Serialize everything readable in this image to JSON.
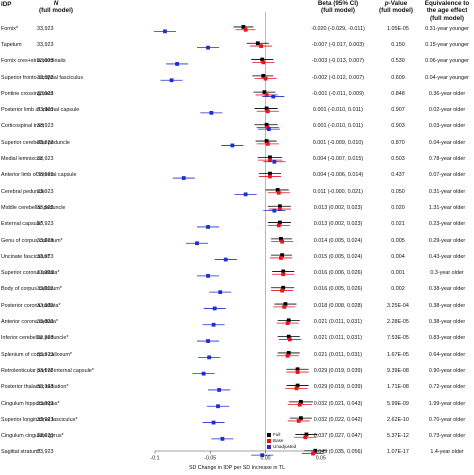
{
  "headers": {
    "idp": "IDP",
    "n_title": "N",
    "n_sub": "(full model)",
    "beta_title": "Beta (95% CI)",
    "beta_sub": "(full model)",
    "p_title_italic": "p",
    "p_title_rest": "-Value",
    "p_sub": "(full model)",
    "eq_title1": "Equivalence to",
    "eq_title2": "the age effect",
    "eq_sub": "(full model)"
  },
  "rows": [
    {
      "label": "Fornix*",
      "n": "33,923",
      "beta": "-0.020 (-0.029, -0.011)",
      "p": "1.05E-05",
      "eq": "0.31-year younger"
    },
    {
      "label": "Tapetum",
      "n": "33,923",
      "beta": "-0.007 (-0.017, 0.003)",
      "p": "0.150",
      "eq": "0.15-year younger"
    },
    {
      "label": "Fornix cres+stria terminalis",
      "n": "33,923",
      "beta": "-0.003 (-0.013, 0.007)",
      "p": "0.530",
      "eq": "0.06-year younger"
    },
    {
      "label": "Superior fronto-occipital fasciculus",
      "n": "33,923",
      "beta": "-0.002 (-0.012, 0.007)",
      "p": "0.609",
      "eq": "0.04-year younger"
    },
    {
      "label": "Pontine crossing tract",
      "n": "33,923",
      "beta": "-0.001 (-0.011, 0.009)",
      "p": "0.848",
      "eq": "0.36-year older"
    },
    {
      "label": "Posterior limb of internal capsule",
      "n": "33,923",
      "beta": "0.001 (-0.010, 0.011)",
      "p": "0.907",
      "eq": "0.02-year older"
    },
    {
      "label": "Corticospinal tract",
      "n": "33,923",
      "beta": "0.001 (-0.010, 0.011)",
      "p": "0.903",
      "eq": "0.03-year older"
    },
    {
      "label": "Superior cerebellar peduncle",
      "n": "33,923",
      "beta": "0.001 (-0.009, 0.010)",
      "p": "0.870",
      "eq": "0.04-year older"
    },
    {
      "label": "Medial lemniscus",
      "n": "33,923",
      "beta": "0.004 (-0.007, 0.015)",
      "p": "0.503",
      "eq": "0.78-year older"
    },
    {
      "label": "Anterior limb of internal capsule",
      "n": "33,923",
      "beta": "0.004 (-0.006, 0.014)",
      "p": "0.437",
      "eq": "0.07-year older"
    },
    {
      "label": "Cerebral peduncle",
      "n": "33,923",
      "beta": "0.011 (-0.000, 0.021)",
      "p": "0.050",
      "eq": "0.31-year older"
    },
    {
      "label": "Middle cerebellar peduncle",
      "n": "33,923",
      "beta": "0.013 (0.002, 0.023)",
      "p": "0.020",
      "eq": "1.31-year older"
    },
    {
      "label": "External capsule*",
      "n": "33,923",
      "beta": "0.013 (0.002, 0.023)",
      "p": "0.021",
      "eq": "0.23-year older"
    },
    {
      "label": "Genu of corpus callosum*",
      "n": "33,923",
      "beta": "0.014 (0.005, 0.024)",
      "p": "0.005",
      "eq": "0.29-year older"
    },
    {
      "label": "Uncinate fasciculus*",
      "n": "33,923",
      "beta": "0.015 (0.005, 0.024)",
      "p": "0.004",
      "eq": "0.43-year older"
    },
    {
      "label": "Superior corona radiata*",
      "n": "33,923",
      "beta": "0.016 (0.006, 0.026)",
      "p": "0.001",
      "eq": "0.3-year older"
    },
    {
      "label": "Body of corpus callosum*",
      "n": "33,923",
      "beta": "0.016 (0.005, 0.026)",
      "p": "0.002",
      "eq": "0.38-year older"
    },
    {
      "label": "Posterior corona radiata*",
      "n": "33,923",
      "beta": "0.018 (0.008, 0.028)",
      "p": "3.25E-04",
      "eq": "0.38-year older"
    },
    {
      "label": "Anterior corona radiata*",
      "n": "33,923",
      "beta": "0.021 (0.011, 0.031)",
      "p": "2.28E-05",
      "eq": "0.38-year older"
    },
    {
      "label": "Inferior cerebellar peduncle*",
      "n": "33,923",
      "beta": "0.021 (0.011, 0.031)",
      "p": "7.53E-05",
      "eq": "0.83-year older"
    },
    {
      "label": "Splenium of corpus callosum*",
      "n": "33,923",
      "beta": "0.021 (0.011, 0.031)",
      "p": "1.67E-05",
      "eq": "0.64-year older"
    },
    {
      "label": "Retrolenticular part of internal capsule*",
      "n": "33,923",
      "beta": "0.029 (0.019, 0.039)",
      "p": "9.39E-08",
      "eq": "0.90-year older"
    },
    {
      "label": "Posterior thalamic radiation*",
      "n": "33,923",
      "beta": "0.029 (0.019, 0.039)",
      "p": "1.71E-08",
      "eq": "0.72-year older"
    },
    {
      "label": "Cingulum hippocampus*",
      "n": "33,923",
      "beta": "0.032 (0.021, 0.043)",
      "p": "5.99E-09",
      "eq": "1.99-year older"
    },
    {
      "label": "Superior longitudinal fasciculus*",
      "n": "33,923",
      "beta": "0.032 (0.022, 0.042)",
      "p": "2.62E-10",
      "eq": "0.70-year older"
    },
    {
      "label": "Cingulum cingulate gyrus*",
      "n": "33,923",
      "beta": "0.037 (0.027, 0.047)",
      "p": "5.37E-12",
      "eq": "0.73-year older"
    },
    {
      "label": "Sagittal stratum*",
      "n": "33,923",
      "beta": "0.045 (0.035, 0.056)",
      "p": "1.07E-17",
      "eq": "1.4-year older"
    }
  ],
  "chart_data": {
    "type": "forest",
    "xlabel": "SD Change in IDP per SD Increase in TL",
    "xlim": [
      -0.1,
      0.052
    ],
    "xticks": [
      -0.1,
      -0.05,
      0.0,
      0.05
    ],
    "xtick_labels": [
      "-0.1",
      "-0.05",
      "0.00",
      "0.05"
    ],
    "reference_line": 0,
    "legend": [
      "Full",
      "Base",
      "Unadjusted"
    ],
    "series": [
      {
        "name": "Full",
        "color": "#000000",
        "estimates": [
          -0.02,
          -0.007,
          -0.003,
          -0.002,
          -0.001,
          0.001,
          0.001,
          0.001,
          0.004,
          0.004,
          0.011,
          0.013,
          0.013,
          0.014,
          0.015,
          0.016,
          0.016,
          0.018,
          0.021,
          0.021,
          0.021,
          0.029,
          0.029,
          0.032,
          0.032,
          0.037,
          0.045
        ],
        "ci_low": [
          -0.029,
          -0.017,
          -0.013,
          -0.012,
          -0.011,
          -0.01,
          -0.01,
          -0.009,
          -0.007,
          -0.006,
          -0.0,
          0.002,
          0.002,
          0.005,
          0.005,
          0.006,
          0.005,
          0.008,
          0.011,
          0.011,
          0.011,
          0.019,
          0.019,
          0.021,
          0.022,
          0.027,
          0.035
        ],
        "ci_high": [
          -0.011,
          0.003,
          0.007,
          0.007,
          0.009,
          0.011,
          0.011,
          0.01,
          0.015,
          0.014,
          0.021,
          0.023,
          0.023,
          0.024,
          0.024,
          0.026,
          0.026,
          0.028,
          0.031,
          0.031,
          0.031,
          0.039,
          0.039,
          0.043,
          0.042,
          0.047,
          0.056
        ]
      },
      {
        "name": "Base",
        "color": "#e8141b",
        "estimates": [
          -0.018,
          -0.004,
          -0.002,
          0.0,
          0.001,
          0.002,
          0.002,
          0.002,
          0.004,
          0.004,
          0.012,
          0.013,
          0.012,
          0.015,
          0.014,
          0.016,
          0.015,
          0.017,
          0.02,
          0.022,
          0.02,
          0.029,
          0.028,
          0.031,
          0.03,
          0.036,
          0.043
        ],
        "ci_low": [
          -0.027,
          -0.014,
          -0.012,
          -0.01,
          -0.009,
          -0.008,
          -0.008,
          -0.008,
          -0.007,
          -0.006,
          0.002,
          0.003,
          0.002,
          0.005,
          0.004,
          0.006,
          0.005,
          0.007,
          0.01,
          0.012,
          0.01,
          0.019,
          0.018,
          0.02,
          0.02,
          0.026,
          0.033
        ],
        "ci_high": [
          -0.009,
          0.006,
          0.008,
          0.01,
          0.011,
          0.012,
          0.012,
          0.012,
          0.015,
          0.014,
          0.022,
          0.023,
          0.022,
          0.025,
          0.024,
          0.026,
          0.025,
          0.027,
          0.03,
          0.032,
          0.03,
          0.039,
          0.038,
          0.042,
          0.04,
          0.046,
          0.053
        ]
      },
      {
        "name": "Unadjusted",
        "color": "#1f2ecf",
        "estimates": [
          -0.091,
          -0.052,
          -0.08,
          -0.085,
          0.007,
          -0.049,
          0.003,
          -0.03,
          0.008,
          -0.074,
          -0.018,
          0.008,
          -0.052,
          -0.062,
          -0.036,
          -0.052,
          -0.041,
          -0.046,
          -0.047,
          -0.052,
          -0.051,
          -0.056,
          -0.042,
          -0.043,
          -0.047,
          -0.039,
          -0.003
        ],
        "ci_low": [
          -0.101,
          -0.062,
          -0.09,
          -0.095,
          -0.003,
          -0.059,
          -0.007,
          -0.04,
          -0.002,
          -0.084,
          -0.028,
          -0.002,
          -0.062,
          -0.072,
          -0.046,
          -0.062,
          -0.051,
          -0.056,
          -0.057,
          -0.062,
          -0.061,
          -0.066,
          -0.052,
          -0.053,
          -0.057,
          -0.049,
          -0.013
        ],
        "ci_high": [
          -0.081,
          -0.042,
          -0.07,
          -0.075,
          0.017,
          -0.039,
          0.013,
          -0.02,
          0.018,
          -0.064,
          -0.008,
          0.018,
          -0.042,
          -0.052,
          -0.026,
          -0.042,
          -0.031,
          -0.036,
          -0.037,
          -0.042,
          -0.041,
          -0.046,
          -0.032,
          -0.033,
          -0.037,
          -0.029,
          0.007
        ]
      }
    ]
  }
}
